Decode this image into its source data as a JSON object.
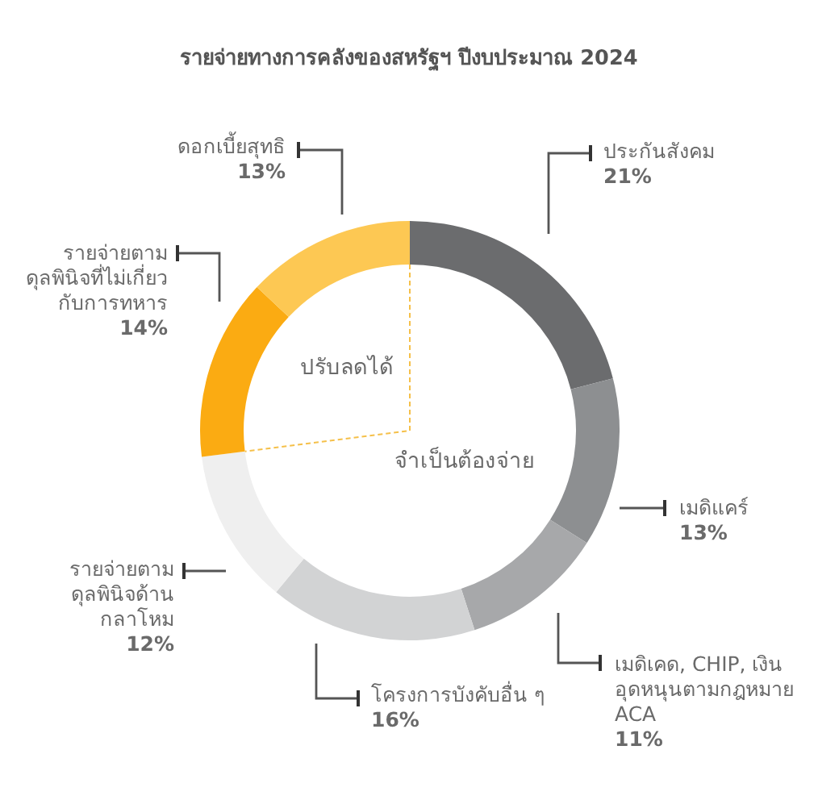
{
  "chart_data": {
    "type": "donut",
    "title": "รายจ่ายทางการคลังของสหรัฐฯ ปีงบประมาณ 2024",
    "categories": [
      "ประกันสังคม",
      "เมดิแคร์",
      "เมดิเคด, CHIP, เงิน\nอุดหนุนตามกฎหมาย\nACA",
      "โครงการบังคับอื่น ๆ",
      "รายจ่ายตาม\nดุลพินิจด้าน\nกลาโหม",
      "รายจ่ายตาม\nดุลพินิจที่ไม่เกี่ยว\nกับการทหาร",
      "ดอกเบี้ยสุทธิ"
    ],
    "values": [
      21,
      13,
      11,
      16,
      12,
      14,
      13
    ],
    "colors": [
      "#6b6c6e",
      "#8d8f91",
      "#a7a8aa",
      "#d2d3d4",
      "#efefef",
      "#fbab12",
      "#fdc853"
    ],
    "value_labels": [
      "21%",
      "13%",
      "11%",
      "16%",
      "12%",
      "14%",
      "13%"
    ],
    "annotations": [
      "จำเป็นต้องจ่าย",
      "ปรับลดได้"
    ]
  }
}
